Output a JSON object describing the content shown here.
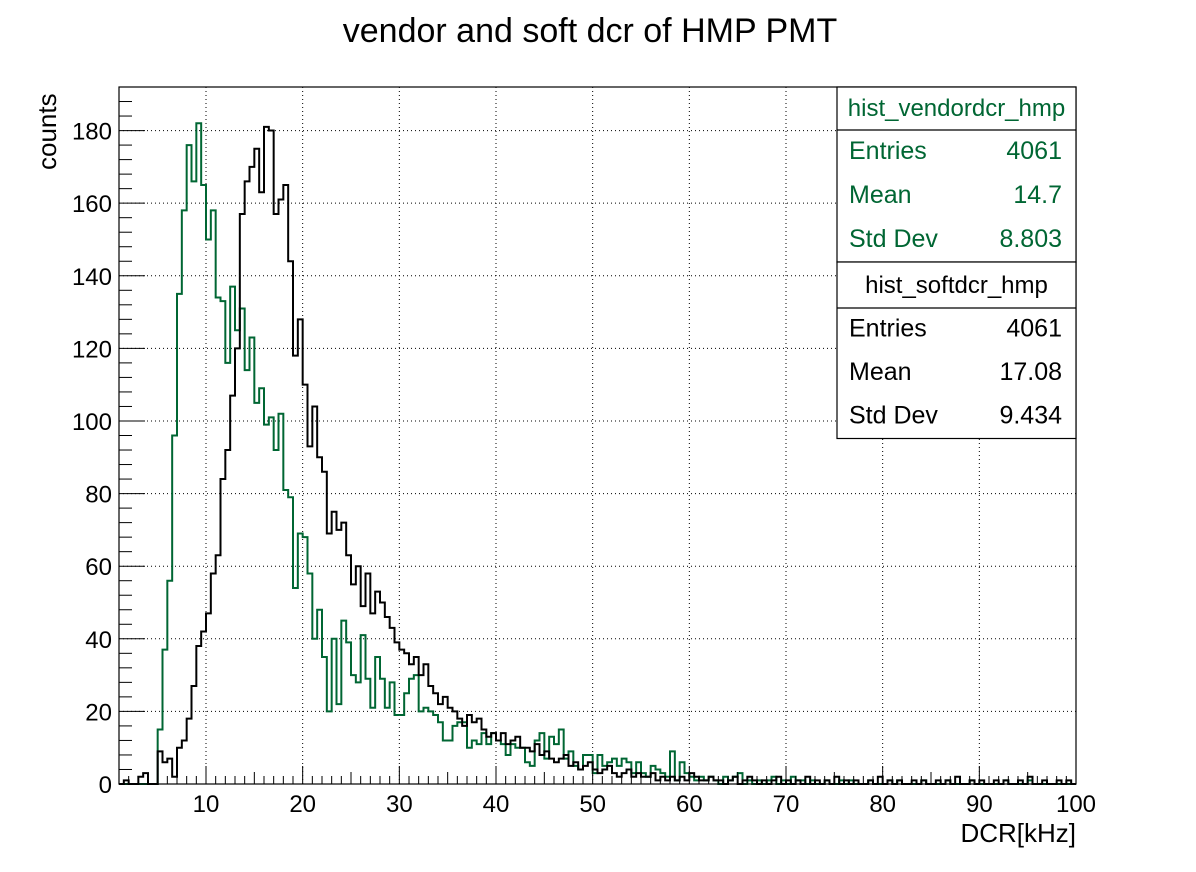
{
  "chart_data": {
    "type": "step-histogram",
    "title": "vendor and soft dcr of HMP PMT",
    "xlabel": "DCR[kHz]",
    "ylabel": "counts",
    "xlim": [
      1,
      100
    ],
    "ylim": [
      0,
      192
    ],
    "x_ticks": [
      10,
      20,
      30,
      40,
      50,
      60,
      70,
      80,
      90,
      100
    ],
    "y_ticks": [
      0,
      20,
      40,
      60,
      80,
      100,
      120,
      140,
      160,
      180
    ],
    "grid": true,
    "legend_position": "top-right",
    "bin_width": 0.5,
    "series": [
      {
        "name": "hist_vendordcr_hmp",
        "color": "#006633",
        "entries": "4061",
        "mean": "14.7",
        "std_dev": "8.803",
        "x_start": 1,
        "values": [
          0,
          0,
          0,
          0,
          0,
          0,
          0,
          0,
          15,
          37,
          56,
          96,
          135,
          158,
          176,
          166,
          182,
          165,
          150,
          158,
          134,
          133,
          116,
          137,
          125,
          131,
          114,
          123,
          105,
          109,
          99,
          101,
          92,
          102,
          81,
          79,
          54,
          69,
          68,
          58,
          40,
          48,
          35,
          20,
          40,
          22,
          45,
          39,
          30,
          28,
          41,
          29,
          21,
          35,
          29,
          21,
          28,
          19,
          19,
          25,
          29,
          30,
          20,
          21,
          20,
          19,
          17,
          12,
          12,
          16,
          17,
          17,
          10,
          12,
          11,
          14,
          11,
          14,
          12,
          11,
          8,
          11,
          10,
          10,
          6,
          5,
          12,
          14,
          7,
          13,
          11,
          15,
          7,
          9,
          5,
          4,
          8,
          8,
          3,
          8,
          5,
          6,
          7,
          5,
          7,
          6,
          3,
          6,
          3,
          2,
          5,
          4,
          3,
          2,
          9,
          1,
          6,
          3,
          2,
          1,
          2,
          1,
          2,
          1,
          0,
          2,
          1,
          2,
          3,
          0,
          1,
          0,
          1,
          0,
          1,
          2,
          0,
          1,
          0,
          2,
          1,
          1,
          0,
          1,
          0,
          0,
          1,
          0,
          0,
          1,
          0,
          1,
          0,
          0,
          0,
          1,
          0,
          0,
          0,
          1,
          0,
          1,
          0,
          0,
          0,
          0,
          1,
          0,
          0,
          0,
          0,
          1,
          0,
          0,
          0,
          0,
          1,
          0,
          0,
          0,
          0,
          0,
          0,
          1,
          0,
          0,
          0,
          0,
          1,
          0,
          0,
          0,
          0,
          0,
          0,
          0,
          0,
          0
        ]
      },
      {
        "name": "hist_softdcr_hmp",
        "color": "#000000",
        "entries": "4061",
        "mean": "17.08",
        "std_dev": "9.434",
        "x_start": 1,
        "values": [
          0,
          1,
          0,
          0,
          2,
          3,
          0,
          0,
          9,
          6,
          7,
          2,
          10,
          12,
          18,
          27,
          38,
          42,
          47,
          58,
          63,
          84,
          92,
          107,
          120,
          157,
          166,
          170,
          175,
          163,
          181,
          180,
          157,
          161,
          165,
          144,
          118,
          128,
          110,
          93,
          104,
          90,
          86,
          69,
          75,
          70,
          72,
          63,
          55,
          60,
          49,
          58,
          47,
          53,
          50,
          46,
          43,
          39,
          37,
          36,
          33,
          35,
          30,
          33,
          27,
          25,
          22,
          24,
          21,
          20,
          18,
          16,
          19,
          17,
          18,
          15,
          13,
          14,
          12,
          14,
          11,
          12,
          13,
          10,
          10,
          9,
          11,
          8,
          9,
          7,
          6,
          7,
          8,
          5,
          6,
          4,
          5,
          6,
          4,
          3,
          4,
          5,
          3,
          2,
          3,
          4,
          2,
          3,
          2,
          2,
          3,
          1,
          2,
          1,
          2,
          1,
          2,
          1,
          3,
          2,
          1,
          1,
          2,
          1,
          1,
          0,
          1,
          2,
          0,
          1,
          2,
          1,
          0,
          1,
          0,
          1,
          2,
          0,
          1,
          0,
          1,
          0,
          2,
          0,
          1,
          0,
          1,
          0,
          2,
          0,
          1,
          0,
          1,
          0,
          0,
          1,
          0,
          2,
          0,
          1,
          0,
          1,
          0,
          0,
          1,
          0,
          1,
          0,
          0,
          1,
          0,
          1,
          0,
          2,
          0,
          0,
          1,
          0,
          1,
          0,
          0,
          1,
          0,
          1,
          0,
          0,
          1,
          0,
          2,
          0,
          0,
          1,
          0,
          0,
          1,
          0,
          1,
          0
        ]
      }
    ]
  },
  "stats_boxes": [
    {
      "title": "hist_vendordcr_hmp",
      "color": "#006633",
      "rows": [
        {
          "label": "Entries",
          "value": "4061"
        },
        {
          "label": "Mean",
          "value": "14.7"
        },
        {
          "label": "Std Dev",
          "value": "8.803"
        }
      ]
    },
    {
      "title": "hist_softdcr_hmp",
      "color": "#000000",
      "rows": [
        {
          "label": "Entries",
          "value": "4061"
        },
        {
          "label": "Mean",
          "value": "17.08"
        },
        {
          "label": "Std Dev",
          "value": "9.434"
        }
      ]
    }
  ]
}
